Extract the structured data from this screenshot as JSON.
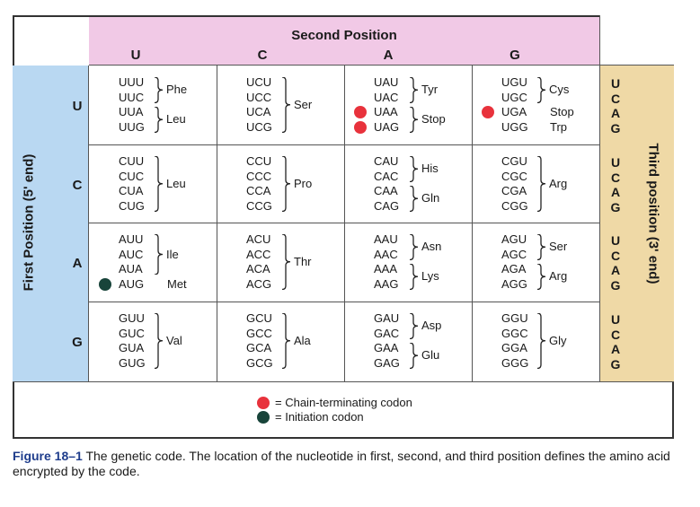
{
  "header": {
    "second_position": "Second Position",
    "letters": [
      "U",
      "C",
      "A",
      "G"
    ]
  },
  "first_position_label": "First Position (5' end)",
  "third_position_label": "Third position (3' end)",
  "third_letters": [
    "U",
    "C",
    "A",
    "G"
  ],
  "rows": [
    {
      "letter": "U",
      "cells": [
        {
          "codons": [
            "UUU",
            "UUC",
            "UUA",
            "UUG"
          ],
          "groups": [
            {
              "aa": "Phe",
              "span": [
                0,
                1
              ]
            },
            {
              "aa": "Leu",
              "span": [
                2,
                3
              ]
            }
          ]
        },
        {
          "codons": [
            "UCU",
            "UCC",
            "UCA",
            "UCG"
          ],
          "groups": [
            {
              "aa": "Ser",
              "span": [
                0,
                3
              ]
            }
          ]
        },
        {
          "codons": [
            "UAU",
            "UAC",
            "UAA",
            "UAG"
          ],
          "groups": [
            {
              "aa": "Tyr",
              "span": [
                0,
                1
              ]
            },
            {
              "aa": "Stop",
              "span": [
                2,
                3
              ]
            }
          ],
          "marks": {
            "2": "red",
            "3": "red"
          }
        },
        {
          "codons": [
            "UGU",
            "UGC",
            "UGA",
            "UGG"
          ],
          "groups": [
            {
              "aa": "Cys",
              "span": [
                0,
                1
              ]
            }
          ],
          "singles": {
            "2": "Stop",
            "3": "Trp"
          },
          "marks": {
            "2": "red"
          }
        }
      ]
    },
    {
      "letter": "C",
      "cells": [
        {
          "codons": [
            "CUU",
            "CUC",
            "CUA",
            "CUG"
          ],
          "groups": [
            {
              "aa": "Leu",
              "span": [
                0,
                3
              ]
            }
          ]
        },
        {
          "codons": [
            "CCU",
            "CCC",
            "CCA",
            "CCG"
          ],
          "groups": [
            {
              "aa": "Pro",
              "span": [
                0,
                3
              ]
            }
          ]
        },
        {
          "codons": [
            "CAU",
            "CAC",
            "CAA",
            "CAG"
          ],
          "groups": [
            {
              "aa": "His",
              "span": [
                0,
                1
              ]
            },
            {
              "aa": "Gln",
              "span": [
                2,
                3
              ]
            }
          ]
        },
        {
          "codons": [
            "CGU",
            "CGC",
            "CGA",
            "CGG"
          ],
          "groups": [
            {
              "aa": "Arg",
              "span": [
                0,
                3
              ]
            }
          ]
        }
      ]
    },
    {
      "letter": "A",
      "cells": [
        {
          "codons": [
            "AUU",
            "AUC",
            "AUA",
            "AUG"
          ],
          "groups": [
            {
              "aa": "Ile",
              "span": [
                0,
                2
              ]
            }
          ],
          "singles": {
            "3": "Met"
          },
          "marks": {
            "3": "green"
          }
        },
        {
          "codons": [
            "ACU",
            "ACC",
            "ACA",
            "ACG"
          ],
          "groups": [
            {
              "aa": "Thr",
              "span": [
                0,
                3
              ]
            }
          ]
        },
        {
          "codons": [
            "AAU",
            "AAC",
            "AAA",
            "AAG"
          ],
          "groups": [
            {
              "aa": "Asn",
              "span": [
                0,
                1
              ]
            },
            {
              "aa": "Lys",
              "span": [
                2,
                3
              ]
            }
          ]
        },
        {
          "codons": [
            "AGU",
            "AGC",
            "AGA",
            "AGG"
          ],
          "groups": [
            {
              "aa": "Ser",
              "span": [
                0,
                1
              ]
            },
            {
              "aa": "Arg",
              "span": [
                2,
                3
              ]
            }
          ]
        }
      ]
    },
    {
      "letter": "G",
      "cells": [
        {
          "codons": [
            "GUU",
            "GUC",
            "GUA",
            "GUG"
          ],
          "groups": [
            {
              "aa": "Val",
              "span": [
                0,
                3
              ]
            }
          ]
        },
        {
          "codons": [
            "GCU",
            "GCC",
            "GCA",
            "GCG"
          ],
          "groups": [
            {
              "aa": "Ala",
              "span": [
                0,
                3
              ]
            }
          ]
        },
        {
          "codons": [
            "GAU",
            "GAC",
            "GAA",
            "GAG"
          ],
          "groups": [
            {
              "aa": "Asp",
              "span": [
                0,
                1
              ]
            },
            {
              "aa": "Glu",
              "span": [
                2,
                3
              ]
            }
          ]
        },
        {
          "codons": [
            "GGU",
            "GGC",
            "GGA",
            "GGG"
          ],
          "groups": [
            {
              "aa": "Gly",
              "span": [
                0,
                3
              ]
            }
          ]
        }
      ]
    }
  ],
  "legend": {
    "red_text": "= Chain-terminating codon",
    "green_text": "= Initiation codon"
  },
  "colors": {
    "red": "#e8323c",
    "green": "#18443a",
    "pink": "#f1c9e6",
    "blue": "#b9d8f2",
    "tan": "#efd9a6"
  },
  "caption": {
    "label": "Figure 18–1",
    "text": " The genetic code. The location of the nucleotide in first, second, and third position defines the amino acid encrypted by the code."
  }
}
